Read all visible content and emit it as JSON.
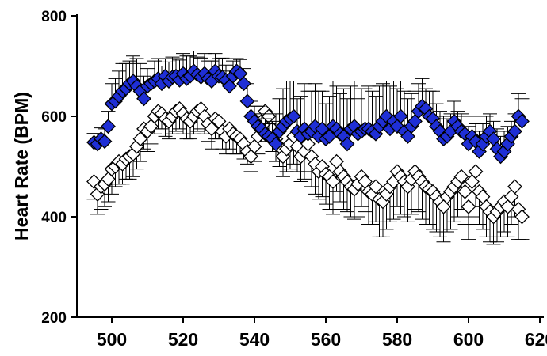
{
  "chart_data": {
    "type": "scatter",
    "title": "",
    "xlabel": "",
    "ylabel": "Heart Rate (BPM)",
    "xlim": [
      492,
      620
    ],
    "ylim": [
      200,
      800
    ],
    "xticks": [
      "500",
      "520",
      "540",
      "560",
      "580",
      "600",
      "620"
    ],
    "yticks": [
      "200",
      "400",
      "600",
      "800"
    ],
    "error_bars": "upper (filled series), lower (open series)",
    "series": [
      {
        "marker": "filled-diamond",
        "color": "#1f2fd6",
        "x": [
          495,
          496,
          497,
          498,
          499,
          500,
          501,
          502,
          503,
          504,
          505,
          506,
          507,
          508,
          509,
          510,
          511,
          512,
          513,
          514,
          515,
          516,
          517,
          518,
          519,
          520,
          521,
          522,
          523,
          524,
          525,
          526,
          527,
          528,
          529,
          530,
          531,
          532,
          533,
          534,
          535,
          536,
          537,
          538,
          539,
          540,
          541,
          542,
          543,
          544,
          545,
          546,
          547,
          548,
          549,
          550,
          551,
          552,
          553,
          554,
          555,
          556,
          557,
          558,
          559,
          560,
          561,
          562,
          563,
          564,
          565,
          566,
          567,
          568,
          569,
          570,
          571,
          572,
          573,
          574,
          575,
          576,
          577,
          578,
          579,
          580,
          581,
          582,
          583,
          584,
          585,
          586,
          587,
          588,
          589,
          590,
          591,
          592,
          593,
          594,
          595,
          596,
          597,
          598,
          599,
          600,
          601,
          602,
          603,
          604,
          605,
          606,
          607,
          608,
          609,
          610,
          611,
          612,
          613,
          614,
          615
        ],
        "y": [
          548,
          545,
          555,
          550,
          580,
          625,
          630,
          640,
          650,
          655,
          665,
          670,
          660,
          650,
          635,
          660,
          665,
          670,
          675,
          665,
          680,
          670,
          678,
          680,
          672,
          685,
          675,
          680,
          690,
          683,
          678,
          685,
          675,
          670,
          690,
          680,
          678,
          672,
          660,
          680,
          690,
          685,
          665,
          630,
          600,
          590,
          580,
          575,
          565,
          560,
          555,
          545,
          570,
          580,
          590,
          595,
          600,
          570,
          560,
          575,
          565,
          570,
          580,
          560,
          575,
          555,
          560,
          580,
          575,
          565,
          560,
          545,
          575,
          580,
          565,
          570,
          575,
          575,
          570,
          565,
          580,
          590,
          600,
          575,
          590,
          580,
          600,
          570,
          560,
          580,
          590,
          610,
          620,
          615,
          600,
          595,
          580,
          570,
          555,
          560,
          570,
          590,
          580,
          570,
          565,
          545,
          560,
          550,
          530,
          545,
          560,
          570,
          555,
          535,
          520,
          530,
          545,
          560,
          570,
          600,
          590
        ],
        "err": [
          18,
          20,
          22,
          25,
          30,
          40,
          45,
          50,
          55,
          50,
          45,
          50,
          55,
          55,
          45,
          35,
          35,
          40,
          40,
          35,
          35,
          38,
          40,
          35,
          40,
          40,
          45,
          40,
          40,
          35,
          38,
          40,
          35,
          40,
          35,
          35,
          38,
          30,
          30,
          30,
          25,
          28,
          30,
          35,
          30,
          30,
          40,
          30,
          30,
          25,
          35,
          60,
          65,
          75,
          80,
          75,
          70,
          65,
          80,
          90,
          85,
          80,
          85,
          90,
          75,
          70,
          80,
          90,
          85,
          80,
          95,
          90,
          85,
          90,
          70,
          85,
          80,
          85,
          80,
          75,
          80,
          75,
          70,
          85,
          80,
          75,
          70,
          80,
          75,
          65,
          60,
          55,
          55,
          40,
          50,
          55,
          45,
          40,
          45,
          35,
          35,
          40,
          30,
          35,
          35,
          35,
          40,
          35,
          40,
          40,
          40,
          35,
          35,
          40,
          40,
          40,
          35,
          30,
          35,
          45,
          45
        ]
      },
      {
        "marker": "open-diamond",
        "color": "#ffffff",
        "x": [
          495,
          496,
          497,
          498,
          499,
          500,
          501,
          502,
          503,
          504,
          505,
          506,
          507,
          508,
          509,
          510,
          511,
          512,
          513,
          514,
          515,
          516,
          517,
          518,
          519,
          520,
          521,
          522,
          523,
          524,
          525,
          526,
          527,
          528,
          529,
          530,
          531,
          532,
          533,
          534,
          535,
          536,
          537,
          538,
          539,
          540,
          541,
          542,
          543,
          544,
          545,
          546,
          547,
          548,
          549,
          550,
          551,
          552,
          553,
          554,
          555,
          556,
          557,
          558,
          559,
          560,
          561,
          562,
          563,
          564,
          565,
          566,
          567,
          568,
          569,
          570,
          571,
          572,
          573,
          574,
          575,
          576,
          577,
          578,
          579,
          580,
          581,
          582,
          583,
          584,
          585,
          586,
          587,
          588,
          589,
          590,
          591,
          592,
          593,
          594,
          595,
          596,
          597,
          598,
          599,
          600,
          601,
          602,
          603,
          604,
          605,
          606,
          607,
          608,
          609,
          610,
          611,
          612,
          613,
          614,
          615
        ],
        "y": [
          470,
          445,
          460,
          465,
          475,
          495,
          500,
          510,
          505,
          515,
          520,
          525,
          540,
          555,
          575,
          570,
          580,
          600,
          610,
          605,
          595,
          590,
          600,
          610,
          615,
          605,
          595,
          590,
          600,
          610,
          615,
          600,
          585,
          575,
          595,
          590,
          570,
          560,
          575,
          565,
          560,
          555,
          545,
          530,
          520,
          540,
          560,
          590,
          610,
          600,
          575,
          555,
          540,
          520,
          535,
          545,
          560,
          540,
          520,
          530,
          545,
          520,
          505,
          490,
          500,
          485,
          480,
          470,
          510,
          490,
          480,
          470,
          460,
          455,
          465,
          480,
          470,
          450,
          445,
          460,
          435,
          430,
          445,
          460,
          470,
          490,
          480,
          470,
          460,
          475,
          490,
          480,
          470,
          460,
          455,
          450,
          440,
          430,
          420,
          440,
          450,
          460,
          470,
          480,
          450,
          420,
          470,
          490,
          450,
          440,
          420,
          410,
          400,
          410,
          420,
          430,
          420,
          440,
          460,
          415,
          400
        ],
        "err": [
          35,
          40,
          45,
          45,
          45,
          50,
          40,
          45,
          40,
          40,
          45,
          45,
          45,
          45,
          40,
          40,
          35,
          35,
          35,
          30,
          35,
          35,
          35,
          40,
          40,
          40,
          40,
          35,
          35,
          40,
          40,
          35,
          35,
          40,
          40,
          35,
          35,
          35,
          40,
          40,
          35,
          30,
          30,
          25,
          30,
          30,
          35,
          40,
          45,
          45,
          45,
          45,
          40,
          40,
          45,
          50,
          55,
          50,
          50,
          55,
          55,
          60,
          60,
          55,
          60,
          60,
          65,
          65,
          60,
          60,
          65,
          60,
          60,
          60,
          65,
          60,
          60,
          65,
          60,
          70,
          75,
          70,
          70,
          70,
          75,
          70,
          75,
          70,
          70,
          70,
          75,
          70,
          75,
          75,
          70,
          75,
          70,
          70,
          70,
          70,
          75,
          70,
          70,
          65,
          65,
          65,
          70,
          70,
          65,
          65,
          60,
          60,
          55,
          60,
          60,
          60,
          60,
          55,
          60,
          60,
          45
        ]
      }
    ]
  }
}
